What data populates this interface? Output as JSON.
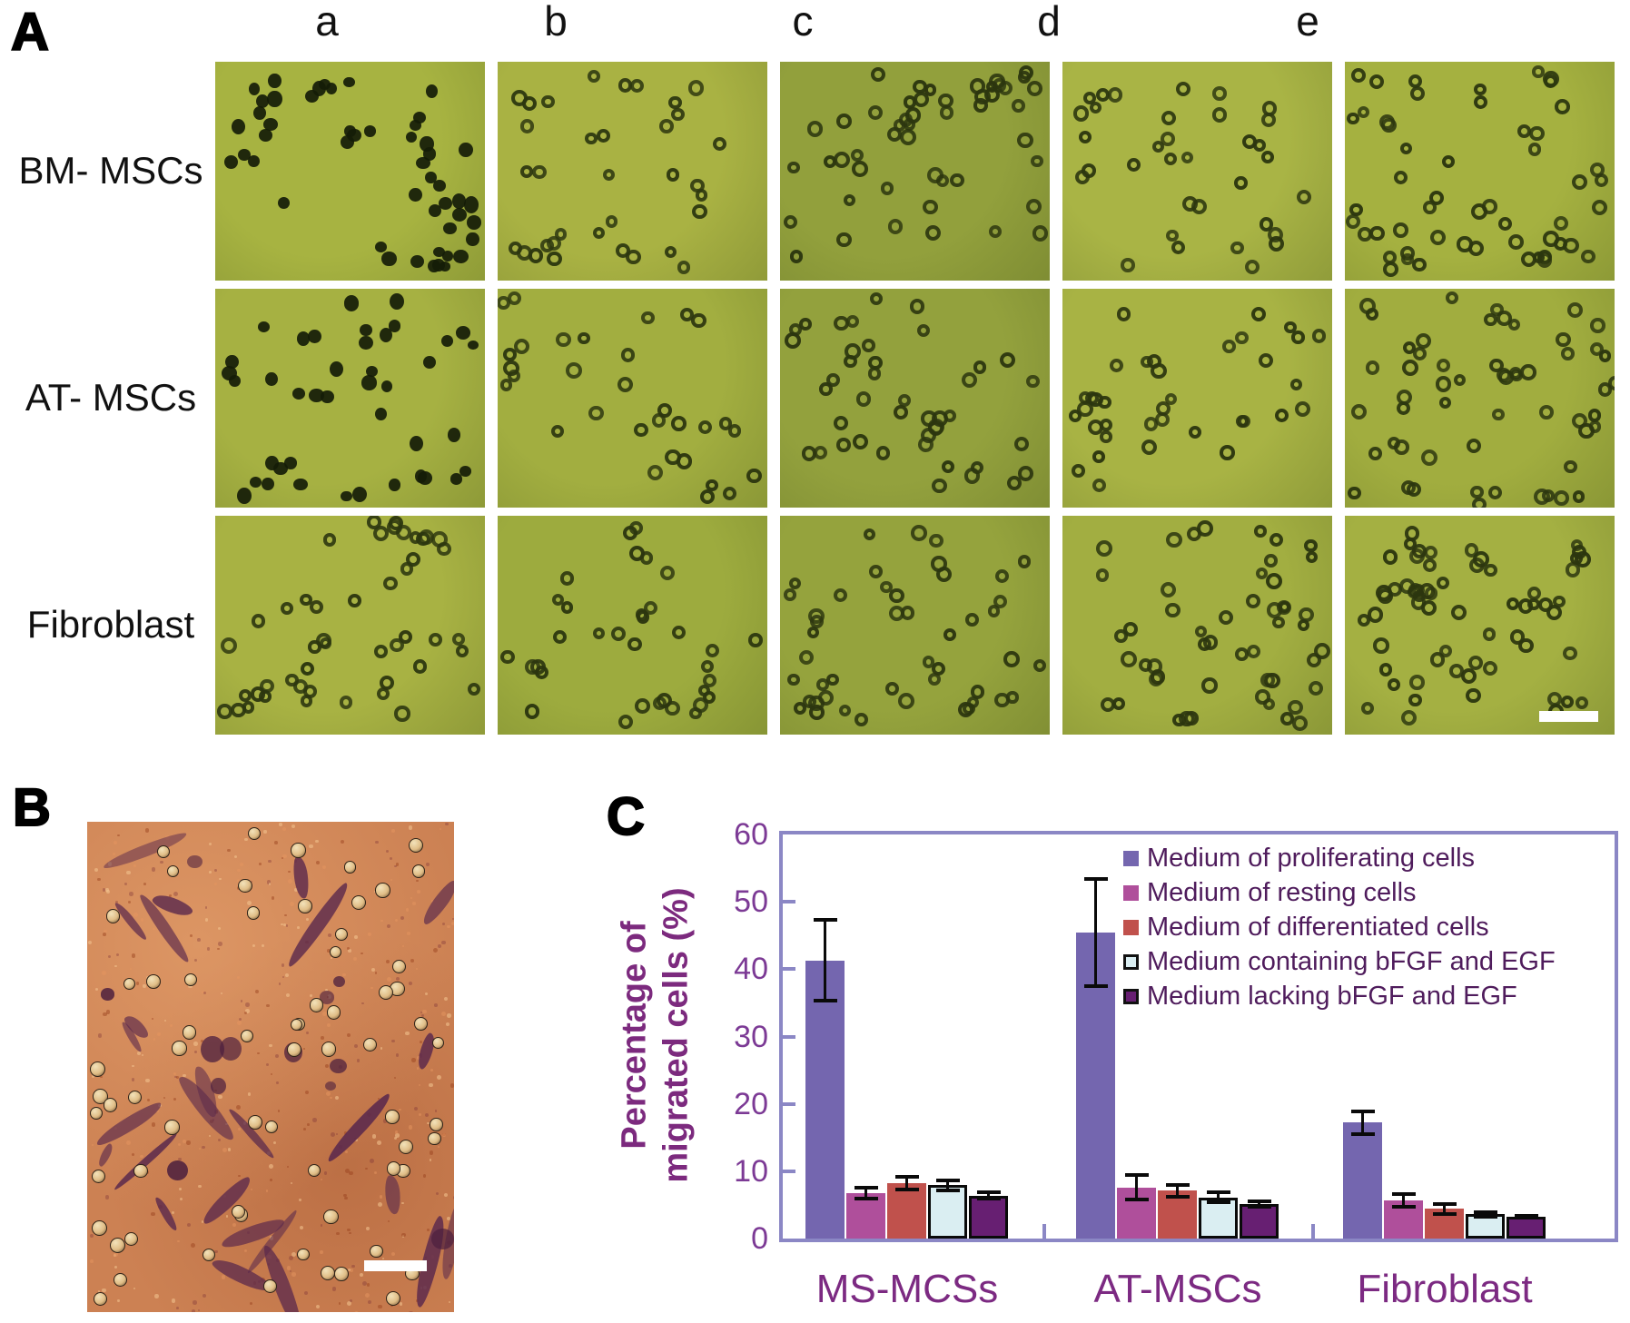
{
  "figure": {
    "panelA": {
      "label": "A",
      "column_labels": [
        "a",
        "b",
        "c",
        "d",
        "e"
      ],
      "row_labels": [
        "BM- MSCs",
        "AT- MSCs",
        "Fibroblast"
      ],
      "dot_color": "#151c08",
      "ring_color": "#2c360f",
      "scalebar_color": "#ffffff",
      "tiles": [
        {
          "row": 0,
          "col": 0,
          "style": "solid",
          "count": 36,
          "bg": "#a7b341",
          "seed": 11
        },
        {
          "row": 0,
          "col": 1,
          "style": "rings",
          "count": 27,
          "bg": "#a9b243",
          "seed": 12
        },
        {
          "row": 0,
          "col": 2,
          "style": "rings",
          "count": 40,
          "bg": "#92a03c",
          "seed": 13
        },
        {
          "row": 0,
          "col": 3,
          "style": "rings",
          "count": 28,
          "bg": "#a9b445",
          "seed": 14
        },
        {
          "row": 0,
          "col": 4,
          "style": "rings",
          "count": 38,
          "bg": "#a5b140",
          "seed": 15
        },
        {
          "row": 1,
          "col": 0,
          "style": "solid",
          "count": 32,
          "bg": "#a6b142",
          "seed": 21
        },
        {
          "row": 1,
          "col": 1,
          "style": "rings",
          "count": 24,
          "bg": "#a2ae40",
          "seed": 22
        },
        {
          "row": 1,
          "col": 2,
          "style": "rings",
          "count": 34,
          "bg": "#93a13d",
          "seed": 23
        },
        {
          "row": 1,
          "col": 3,
          "style": "rings",
          "count": 30,
          "bg": "#a8b344",
          "seed": 24
        },
        {
          "row": 1,
          "col": 4,
          "style": "rings",
          "count": 42,
          "bg": "#a1ad3f",
          "seed": 25
        },
        {
          "row": 2,
          "col": 0,
          "style": "rings",
          "count": 34,
          "bg": "#a8b243",
          "seed": 31
        },
        {
          "row": 2,
          "col": 1,
          "style": "rings",
          "count": 28,
          "bg": "#9dab3e",
          "seed": 32
        },
        {
          "row": 2,
          "col": 2,
          "style": "rings",
          "count": 36,
          "bg": "#95a33d",
          "seed": 33
        },
        {
          "row": 2,
          "col": 3,
          "style": "rings",
          "count": 36,
          "bg": "#a2ae41",
          "seed": 34
        },
        {
          "row": 2,
          "col": 4,
          "style": "rings",
          "count": 44,
          "bg": "#a4b042",
          "seed": 35,
          "scalebar": true
        }
      ]
    },
    "panelB": {
      "label": "B",
      "bg": "#cc8153",
      "speckle_count": 430,
      "bead_count": 66,
      "cell_count": 26,
      "blob_count": 12,
      "bead_fill": "#f2e2ba",
      "cell_color": "#5c2a4c",
      "scalebar_color": "#ffffff",
      "seed": 77
    },
    "panelC": {
      "label": "C"
    }
  },
  "chart_data": {
    "type": "bar",
    "title": "",
    "xlabel": "",
    "ylabel": "Percentage of migrated cells (%)",
    "ylabel_lines": [
      "Percentage of",
      "migrated cells (%)"
    ],
    "ylim": [
      0,
      60
    ],
    "yticks": [
      0,
      10,
      20,
      30,
      40,
      50,
      60
    ],
    "grid": false,
    "legend_position": "top-right",
    "categories": [
      "MS-MCSs",
      "AT-MSCs",
      "Fibroblast"
    ],
    "series": [
      {
        "name": "Medium of proliferating cells",
        "color": "#7466af",
        "outlined": false,
        "values": [
          41.3,
          45.4,
          17.2
        ],
        "errors": [
          6.3,
          8.2,
          2.0
        ]
      },
      {
        "name": "Medium of resting cells",
        "color": "#af4f9b",
        "outlined": false,
        "values": [
          6.7,
          7.6,
          5.7
        ],
        "errors": [
          1.1,
          2.1,
          1.2
        ]
      },
      {
        "name": "Medium of differentiated cells",
        "color": "#c0514c",
        "outlined": false,
        "values": [
          8.2,
          7.1,
          4.4
        ],
        "errors": [
          1.2,
          1.1,
          1.0
        ]
      },
      {
        "name": "Medium containing bFGF and EGF",
        "color": "#daeef2",
        "outlined": true,
        "values": [
          7.9,
          6.1,
          3.6
        ],
        "errors": [
          1.0,
          1.0,
          0.6
        ]
      },
      {
        "name": "Medium lacking bFGF and EGF",
        "color": "#671f72",
        "outlined": true,
        "values": [
          6.4,
          5.1,
          3.2
        ],
        "errors": [
          0.8,
          0.7,
          0.4
        ]
      }
    ],
    "axis_color": "#8b87c5",
    "error_bar_color": "#000000",
    "label_color": "#7c2a82",
    "tick_label_color": "#7c3a95",
    "legend_text_color": "#4f1c5c"
  }
}
